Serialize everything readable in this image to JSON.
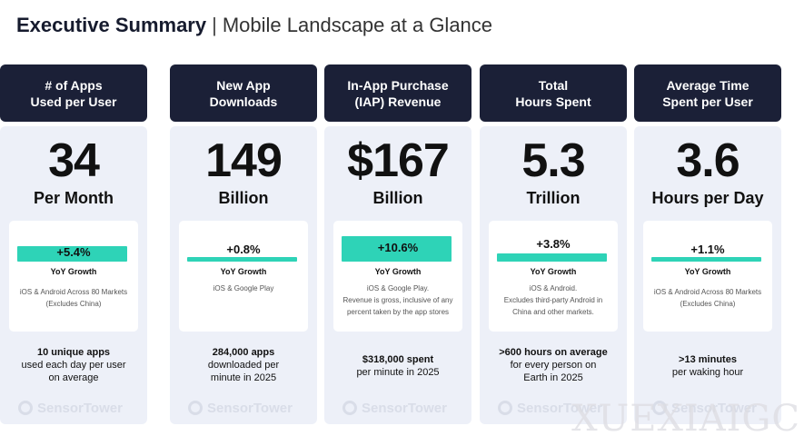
{
  "header": {
    "title": "Executive Summary",
    "separator": "|",
    "subtitle": "Mobile Landscape at a Glance"
  },
  "accent_color": "#2ed3b7",
  "header_bg": "#1b2037",
  "columns": [
    {
      "label": "New App\nDownloads",
      "value": "149",
      "unit": "Billion",
      "growth": "+0.8%",
      "growth_label": "YoY Growth",
      "note": "iOS & Google Play",
      "footer_bold": "284,000 apps",
      "footer_rest": "downloaded per\nminute in 2025",
      "brand": "SensorTower"
    },
    {
      "label": "In-App Purchase\n(IAP) Revenue",
      "value": "$167",
      "unit": "Billion",
      "growth": "+10.6%",
      "growth_label": "YoY Growth",
      "note": "iOS & Google Play.\nRevenue is gross, inclusive of any\npercent taken by the app stores",
      "footer_bold": "$318,000 spent",
      "footer_rest": "per minute in 2025",
      "brand": "SensorTower"
    },
    {
      "label": "Total\nHours Spent",
      "value": "5.3",
      "unit": "Trillion",
      "growth": "+3.8%",
      "growth_label": "YoY Growth",
      "note": "iOS & Android.\nExcludes third-party Android in\nChina and other markets.",
      "footer_bold": ">600 hours on average",
      "footer_rest": "for every person on\nEarth in 2025",
      "brand": "SensorTower"
    },
    {
      "label": "Average Time\nSpent per User",
      "value": "3.6",
      "unit": "Hours per Day",
      "growth": "+1.1%",
      "growth_label": "YoY Growth",
      "note": "iOS & Android Across 80 Markets\n(Excludes China)",
      "footer_bold": ">13 minutes",
      "footer_rest": "per waking hour",
      "brand": "SensorTower"
    },
    {
      "label": "# of Apps\nUsed per User",
      "value": "34",
      "unit": "Per Month",
      "growth": "+5.4%",
      "growth_label": "YoY Growth",
      "note": "iOS & Android Across 80 Markets\n(Excludes China)",
      "footer_bold": "10 unique apps",
      "footer_rest": "used each day per user\non average",
      "brand": "SensorTower"
    }
  ],
  "watermark": "XUEXIAIGC"
}
